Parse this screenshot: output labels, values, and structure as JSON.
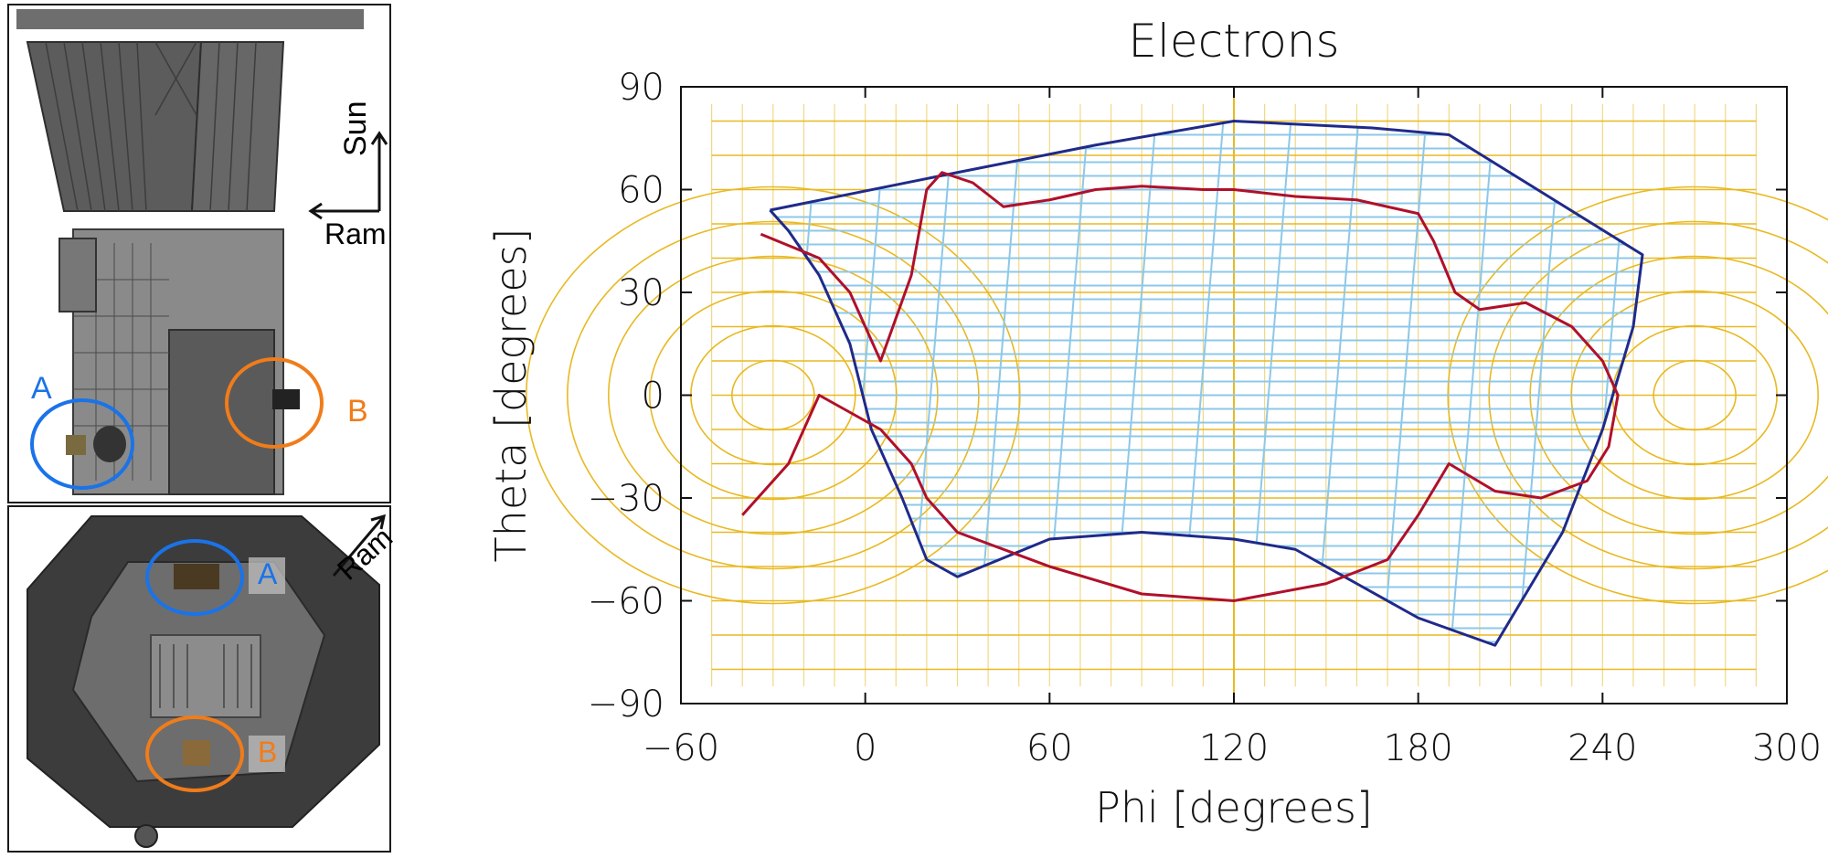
{
  "left_panels": {
    "top": {
      "direction_labels": [
        "Sun",
        "Ram"
      ],
      "circle_labels": [
        {
          "text": "A",
          "color": "#1a73e8"
        },
        {
          "text": "B",
          "color": "#f07c1a"
        }
      ]
    },
    "bottom": {
      "direction_labels": [
        "Ram"
      ],
      "circle_labels": [
        {
          "text": "A",
          "color": "#1a73e8"
        },
        {
          "text": "B",
          "color": "#f07c1a"
        }
      ]
    }
  },
  "chart_data": {
    "type": "line",
    "title": "Electrons",
    "xlabel": "Phi [degrees]",
    "ylabel": "Theta [degrees]",
    "xlim": [
      -60,
      300
    ],
    "ylim": [
      -90,
      90
    ],
    "x_ticks": [
      -60,
      0,
      60,
      120,
      180,
      240,
      300
    ],
    "y_ticks": [
      90,
      60,
      30,
      0,
      -30,
      -60,
      -90
    ],
    "x_tick_labels": [
      "−60",
      "0",
      "60",
      "120",
      "180",
      "240",
      "300"
    ],
    "y_tick_labels": [
      "90",
      "60",
      "30",
      "0",
      "−30",
      "−60",
      "−90"
    ],
    "colors": {
      "grid": "#e8b923",
      "fov_grid": "#8ec8e8",
      "fov_outline": "#1f2a8a",
      "obstruction": "#b0102a",
      "axis": "#111111"
    },
    "series": [
      {
        "name": "field-of-view-outline",
        "color": "#1f2a8a",
        "x": [
          -31,
          30,
          75,
          120,
          165,
          190,
          253,
          250,
          240,
          227,
          205,
          180,
          160,
          140,
          120,
          90,
          60,
          30,
          20,
          12,
          2,
          -5,
          -15,
          -25,
          -31
        ],
        "y": [
          54,
          65,
          73,
          80,
          78,
          76,
          41,
          20,
          -10,
          -40,
          -73,
          -65,
          -55,
          -45,
          -42,
          -40,
          -42,
          -53,
          -48,
          -30,
          -10,
          15,
          35,
          48,
          54
        ]
      },
      {
        "name": "obstruction-boundary",
        "color": "#b0102a",
        "x": [
          -34,
          -15,
          -5,
          0,
          5,
          15,
          20,
          25,
          35,
          45,
          60,
          75,
          90,
          110,
          120,
          140,
          160,
          180,
          185,
          192,
          200,
          215,
          230,
          240,
          245,
          242,
          235,
          220,
          205,
          190,
          180,
          170,
          150,
          120,
          90,
          60,
          30,
          20,
          15,
          10,
          5,
          -5,
          -15,
          -25,
          -40
        ],
        "y": [
          47,
          40,
          30,
          20,
          10,
          35,
          60,
          65,
          62,
          55,
          57,
          60,
          61,
          60,
          60,
          58,
          57,
          53,
          45,
          30,
          25,
          27,
          20,
          10,
          0,
          -15,
          -25,
          -30,
          -28,
          -20,
          -35,
          -48,
          -55,
          -60,
          -58,
          -50,
          -40,
          -30,
          -20,
          -15,
          -10,
          -5,
          0,
          -20,
          -35
        ]
      }
    ]
  }
}
